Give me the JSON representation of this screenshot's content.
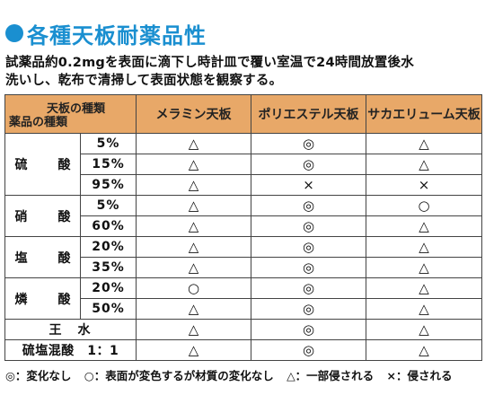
{
  "title": "各種天板耐薬品性",
  "description": [
    "試薬品約0.2mgを表面に滴下し時計皿で覆い室温で24時間放置後水",
    "洗いし、乾布で清掃して表面状態を観察する。"
  ],
  "header": {
    "corner_top": "天板の種類",
    "corner_bottom": "薬品の種類",
    "columns": [
      "メラミン天板",
      "ポリエステル天板",
      "サカエリューム天板"
    ]
  },
  "rows": [
    {
      "chem": "硫　酸",
      "conc": "5%",
      "vals": [
        "△",
        "◎",
        "△"
      ]
    },
    {
      "chem": "",
      "conc": "15%",
      "vals": [
        "△",
        "◎",
        "△"
      ]
    },
    {
      "chem": "",
      "conc": "95%",
      "vals": [
        "△",
        "×",
        "×"
      ]
    },
    {
      "chem": "硝　酸",
      "conc": "5%",
      "vals": [
        "△",
        "◎",
        "○"
      ]
    },
    {
      "chem": "",
      "conc": "60%",
      "vals": [
        "△",
        "◎",
        "△"
      ]
    },
    {
      "chem": "塩　酸",
      "conc": "20%",
      "vals": [
        "△",
        "◎",
        "△"
      ]
    },
    {
      "chem": "",
      "conc": "35%",
      "vals": [
        "△",
        "◎",
        "△"
      ]
    },
    {
      "chem": "燐　酸",
      "conc": "20%",
      "vals": [
        "○",
        "◎",
        "△"
      ]
    },
    {
      "chem": "",
      "conc": "50%",
      "vals": [
        "△",
        "◎",
        "△"
      ]
    },
    {
      "chem": "王　水",
      "conc": "",
      "vals": [
        "△",
        "◎",
        "△"
      ]
    },
    {
      "chem": "硫塩混酸　1：1",
      "conc": "",
      "vals": [
        "△",
        "◎",
        "△"
      ]
    }
  ],
  "legend": [
    "◎：変化なし",
    "○：表面が変色するが材質の変化なし",
    "△：一部侵される",
    "×：侵される"
  ]
}
